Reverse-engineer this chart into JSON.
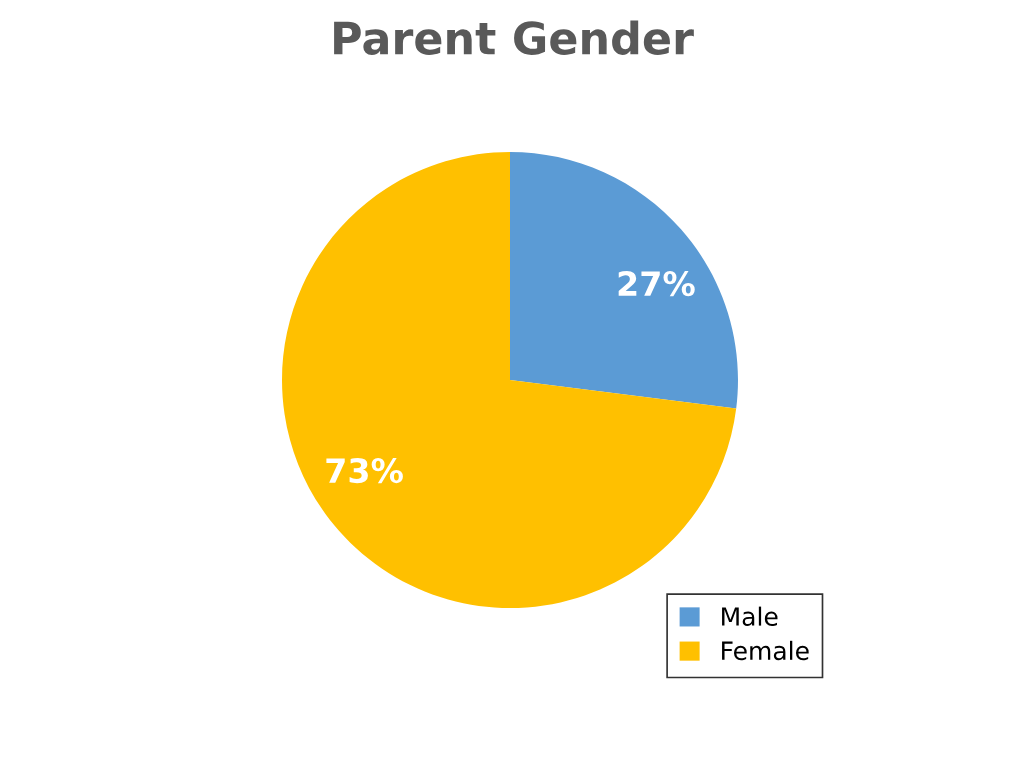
{
  "chart_data": {
    "type": "pie",
    "title": "Parent Gender",
    "categories": [
      "Male",
      "Female"
    ],
    "values": [
      27,
      73
    ],
    "colors": [
      "#5b9bd5",
      "#ffc000"
    ],
    "value_labels": [
      "27%",
      "73%"
    ],
    "legend": "bottom right"
  }
}
